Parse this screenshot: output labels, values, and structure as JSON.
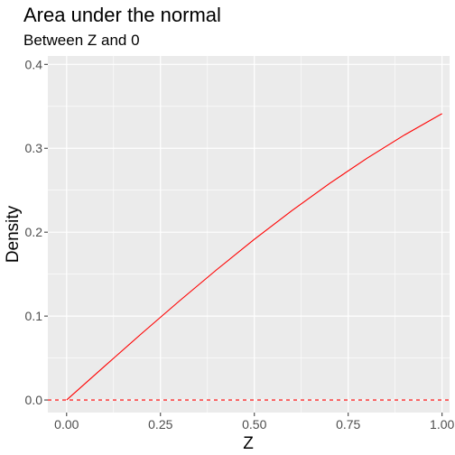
{
  "chart_data": {
    "type": "line",
    "title": "Area under the normal",
    "subtitle": "Between Z and 0",
    "xlabel": "Z",
    "ylabel": "Density",
    "xlim": [
      -0.05,
      1.02
    ],
    "ylim": [
      -0.015,
      0.41
    ],
    "x_ticks": [
      0,
      0.25,
      0.5,
      0.75,
      1
    ],
    "x_tick_labels": [
      "0.00",
      "0.25",
      "0.50",
      "0.75",
      "1.00"
    ],
    "y_ticks": [
      0,
      0.1,
      0.2,
      0.3,
      0.4
    ],
    "y_tick_labels": [
      "0.0",
      "0.1",
      "0.2",
      "0.3",
      "0.4"
    ],
    "grid": true,
    "series": [
      {
        "color": "#ff0000",
        "x": [
          0,
          0.1,
          0.2,
          0.3,
          0.4,
          0.5,
          0.6,
          0.7,
          0.8,
          0.9,
          1.0
        ],
        "values": [
          0,
          0.0398,
          0.0793,
          0.1179,
          0.1554,
          0.1915,
          0.2257,
          0.258,
          0.2881,
          0.3159,
          0.3413
        ]
      }
    ],
    "reference_line": {
      "y": 0,
      "style": "dashed",
      "color": "#ff0000"
    }
  }
}
